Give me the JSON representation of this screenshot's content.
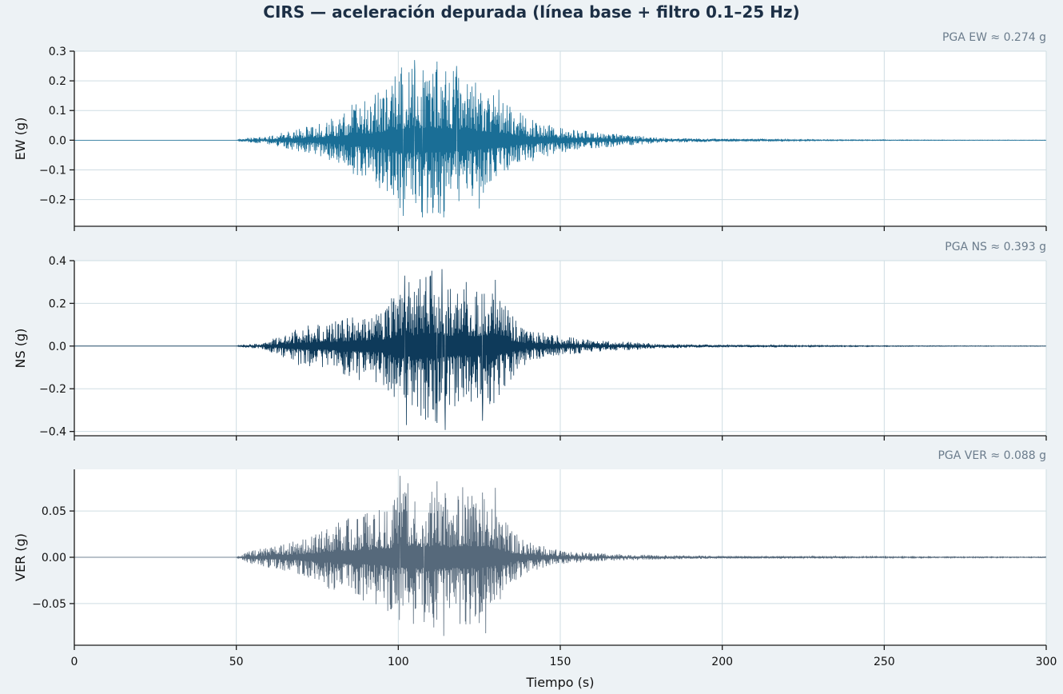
{
  "chart_data": {
    "type": "line",
    "title": "CIRS — aceleración depurada (línea base + filtro 0.1–25 Hz)",
    "xlabel": "Tiempo (s)",
    "xlim": [
      0,
      300
    ],
    "x_ticks": [
      0,
      50,
      100,
      150,
      200,
      250,
      300
    ],
    "x_tick_labels": [
      "0",
      "50",
      "100",
      "150",
      "200",
      "250",
      "300"
    ],
    "grid": true,
    "panels": [
      {
        "name": "EW",
        "ylabel": "EW (g)",
        "ylim": [
          -0.29,
          0.3
        ],
        "y_ticks": [
          -0.2,
          -0.1,
          0.0,
          0.1,
          0.2,
          0.3
        ],
        "y_tick_labels": [
          "−0.2",
          "−0.1",
          "0.0",
          "0.1",
          "0.2",
          "0.3"
        ],
        "color": "#1a6e96",
        "pga_text": "PGA EW ≈ 0.274 g",
        "pga": 0.274,
        "envelope": {
          "t": [
            0,
            50,
            53,
            60,
            68,
            75,
            82,
            86,
            90,
            95,
            100,
            105,
            110,
            115,
            120,
            125,
            130,
            135,
            140,
            150,
            160,
            170,
            180,
            200,
            230,
            260,
            300
          ],
          "amp": [
            0,
            0,
            0.008,
            0.015,
            0.04,
            0.055,
            0.09,
            0.13,
            0.14,
            0.18,
            0.245,
            0.265,
            0.274,
            0.26,
            0.24,
            0.2,
            0.18,
            0.12,
            0.08,
            0.045,
            0.03,
            0.02,
            0.01,
            0.005,
            0.002,
            0.001,
            0.0005
          ]
        },
        "peaks": [
          {
            "t": 101,
            "a": 0.245
          },
          {
            "t": 101.5,
            "a": -0.255
          },
          {
            "t": 105,
            "a": 0.27
          },
          {
            "t": 107.5,
            "a": -0.26
          },
          {
            "t": 112,
            "a": 0.265
          },
          {
            "t": 114,
            "a": -0.26
          },
          {
            "t": 118,
            "a": 0.25
          },
          {
            "t": 125,
            "a": -0.23
          },
          {
            "t": 131,
            "a": 0.17
          }
        ]
      },
      {
        "name": "NS",
        "ylabel": "NS (g)",
        "ylim": [
          -0.42,
          0.4
        ],
        "y_ticks": [
          -0.4,
          -0.2,
          0.0,
          0.2,
          0.4
        ],
        "y_tick_labels": [
          "−0.4",
          "−0.2",
          "0.0",
          "0.2",
          "0.4"
        ],
        "color": "#0e3a5a",
        "pga_text": "PGA NS ≈ 0.393 g",
        "pga": 0.393,
        "envelope": {
          "t": [
            0,
            50,
            52,
            58,
            65,
            70,
            78,
            82,
            88,
            95,
            100,
            104,
            108,
            112,
            116,
            120,
            126,
            130,
            135,
            140,
            150,
            160,
            170,
            180,
            200,
            230,
            260,
            300
          ],
          "amp": [
            0,
            0,
            0.008,
            0.015,
            0.06,
            0.1,
            0.11,
            0.14,
            0.17,
            0.2,
            0.3,
            0.33,
            0.36,
            0.39,
            0.3,
            0.3,
            0.28,
            0.3,
            0.16,
            0.08,
            0.05,
            0.03,
            0.022,
            0.012,
            0.006,
            0.003,
            0.0015,
            0.001
          ]
        },
        "peaks": [
          {
            "t": 102,
            "a": 0.33
          },
          {
            "t": 102.5,
            "a": -0.37
          },
          {
            "t": 110,
            "a": 0.33
          },
          {
            "t": 112,
            "a": -0.36
          },
          {
            "t": 113.5,
            "a": 0.36
          },
          {
            "t": 114.5,
            "a": -0.393
          },
          {
            "t": 121,
            "a": 0.3
          },
          {
            "t": 126,
            "a": -0.35
          },
          {
            "t": 130,
            "a": 0.31
          }
        ]
      },
      {
        "name": "VER",
        "ylabel": "VER (g)",
        "ylim": [
          -0.095,
          0.095
        ],
        "y_ticks": [
          -0.05,
          0.0,
          0.05
        ],
        "y_tick_labels": [
          "−0.05",
          "0.00",
          "0.05"
        ],
        "color": "#56697b",
        "pga_text": "PGA VER ≈ 0.088 g",
        "pga": 0.088,
        "envelope": {
          "t": [
            0,
            50,
            53,
            60,
            70,
            78,
            85,
            90,
            96,
            100,
            104,
            108,
            112,
            116,
            120,
            126,
            130,
            135,
            140,
            150,
            160,
            175,
            200,
            230,
            260,
            300
          ],
          "amp": [
            0,
            0,
            0.006,
            0.012,
            0.02,
            0.035,
            0.045,
            0.05,
            0.06,
            0.07,
            0.085,
            0.072,
            0.088,
            0.07,
            0.08,
            0.075,
            0.06,
            0.03,
            0.018,
            0.008,
            0.005,
            0.003,
            0.0015,
            0.001,
            0.0007,
            0.0005
          ]
        },
        "peaks": [
          {
            "t": 100.5,
            "a": 0.088
          },
          {
            "t": 103,
            "a": 0.08
          },
          {
            "t": 108,
            "a": -0.07
          },
          {
            "t": 112,
            "a": 0.082
          },
          {
            "t": 114,
            "a": -0.085
          },
          {
            "t": 126,
            "a": 0.07
          },
          {
            "t": 127,
            "a": -0.082
          },
          {
            "t": 130,
            "a": 0.075
          }
        ]
      }
    ]
  }
}
